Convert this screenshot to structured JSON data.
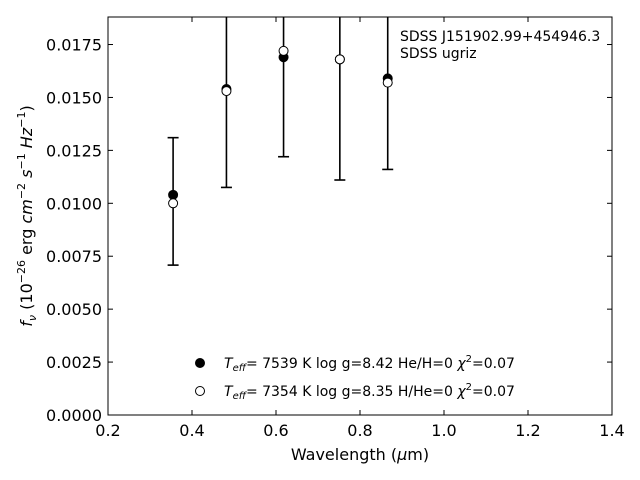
{
  "chart_data": {
    "type": "scatter",
    "xlabel": "Wavelength (μm)",
    "ylabel": "f_ν (10^-26 erg cm^-2 s^-1 Hz^-1)",
    "xlim": [
      0.2,
      1.4
    ],
    "ylim": [
      0.0,
      0.0188
    ],
    "x_ticks": [
      "0.2",
      "0.4",
      "0.6",
      "0.8",
      "1.0",
      "1.2",
      "1.4"
    ],
    "y_ticks": [
      "0.0000",
      "0.0025",
      "0.0050",
      "0.0075",
      "0.0100",
      "0.0125",
      "0.0150",
      "0.0175"
    ],
    "annotations": [
      "SDSS J151902.99+454946.3",
      "SDSS ugriz"
    ],
    "observed": {
      "x": [
        0.355,
        0.482,
        0.618,
        0.752,
        0.866
      ],
      "y_lower": [
        0.00708,
        0.01075,
        0.0122,
        0.0111,
        0.0116
      ],
      "y_upper": [
        0.0131,
        null,
        null,
        null,
        null
      ]
    },
    "series": [
      {
        "label_teff": "T_eff=  7539 K",
        "label_rest": "log g=8.42  He/H=0",
        "label_chi": "χ²=0.07",
        "marker": "filled",
        "x": [
          0.355,
          0.482,
          0.618,
          0.752,
          0.866
        ],
        "y": [
          0.0104,
          0.0154,
          0.0169,
          0.0168,
          0.0159
        ]
      },
      {
        "label_teff": "T_eff=  7354 K",
        "label_rest": "log g=8.35  H/He=0",
        "label_chi": "χ²=0.07",
        "marker": "open",
        "x": [
          0.355,
          0.482,
          0.618,
          0.752,
          0.866
        ],
        "y": [
          0.01,
          0.0153,
          0.0172,
          0.0168,
          0.0157
        ]
      }
    ],
    "colors": {
      "marker": "#000000",
      "open_fill": "#ffffff"
    }
  }
}
